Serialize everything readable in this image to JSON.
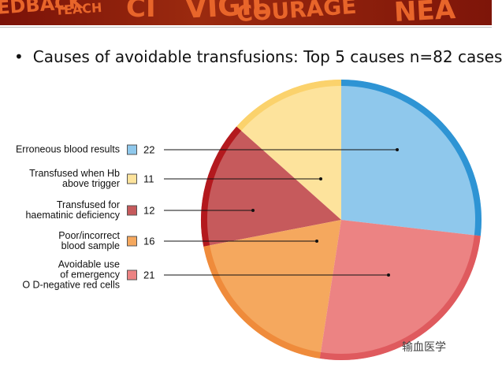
{
  "header": {
    "banner_words": [
      "EDBACK",
      "TEACH",
      "CI",
      "VIGIL",
      "COURAGE",
      "NEA"
    ]
  },
  "chart_data": {
    "type": "pie",
    "title": "Causes of avoidable transfusions: Top 5 causes n=82 cases",
    "categories": [
      "Erroneous blood results",
      "Transfused when Hb\nabove trigger",
      "Transfused for\nhaematinic deficiency",
      "Poor/incorrect\nblood sample",
      "Avoidable use\nof emergency\nO D-negative red cells"
    ],
    "values": [
      22,
      11,
      12,
      16,
      21
    ],
    "colors": [
      "#8fc8ec",
      "#fde39c",
      "#c65a5c",
      "#f5a85e",
      "#ec8383"
    ],
    "edge_colors": [
      "#2e94d4",
      "#fbd26c",
      "#b3191e",
      "#ef8b3b",
      "#df5a5e"
    ]
  },
  "watermark": "输血医学"
}
